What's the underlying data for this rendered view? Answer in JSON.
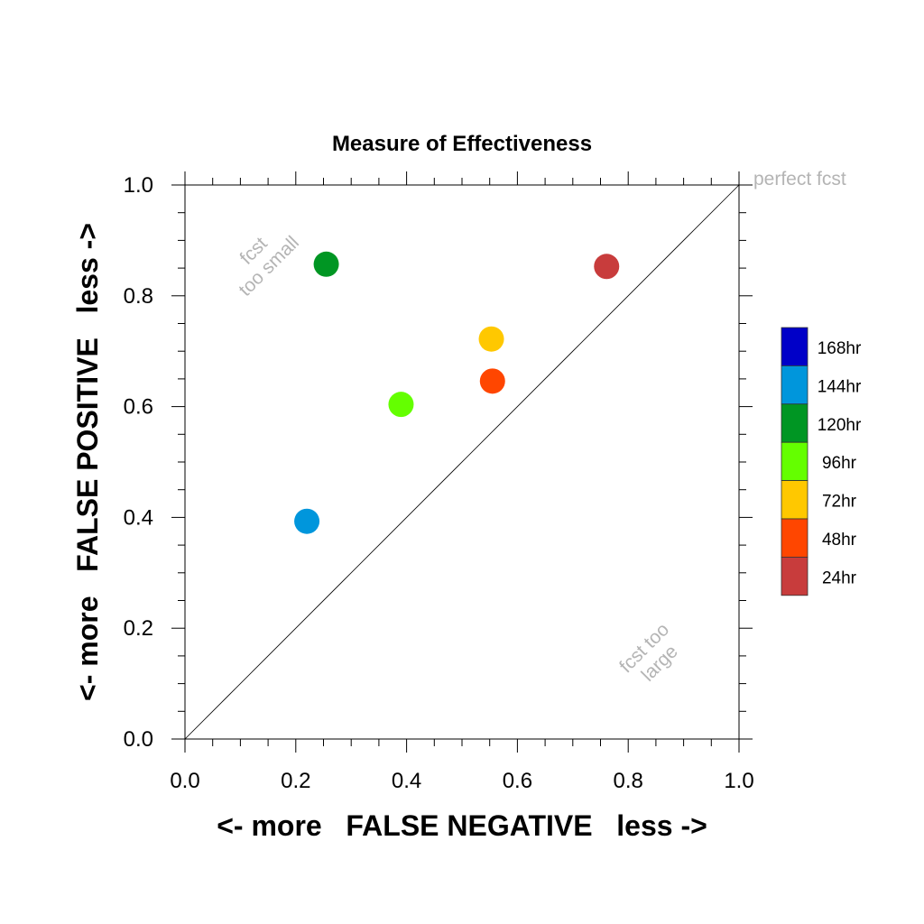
{
  "chart_data": {
    "type": "scatter",
    "title": "Measure of Effectiveness",
    "xlabel": "<- more   FALSE NEGATIVE   less ->",
    "ylabel": "<- more   FALSE POSITIVE   less ->",
    "xlim": [
      0,
      1
    ],
    "ylim": [
      0,
      1
    ],
    "grid": false,
    "legend_position": "right",
    "xticks": [
      "0.0",
      "0.2",
      "0.4",
      "0.6",
      "0.8",
      "1.0"
    ],
    "yticks": [
      "0.0",
      "0.2",
      "0.4",
      "0.6",
      "0.8",
      "1.0"
    ],
    "annotations": {
      "perfect": "perfect fcst",
      "small_line1": "fcst",
      "small_line2": "too small",
      "large_line1": "fcst too",
      "large_line2": "large"
    },
    "legend": [
      {
        "label": "168hr",
        "color": "#0000c8"
      },
      {
        "label": "144hr",
        "color": "#0096dc"
      },
      {
        "label": "120hr",
        "color": "#009623"
      },
      {
        "label": "96hr",
        "color": "#64ff00"
      },
      {
        "label": "72hr",
        "color": "#ffc800"
      },
      {
        "label": "48hr",
        "color": "#ff4600"
      },
      {
        "label": "24hr",
        "color": "#c83c3c"
      }
    ],
    "series": [
      {
        "name": "144hr",
        "x": 0.22,
        "y": 0.393,
        "color": "#0096dc"
      },
      {
        "name": "120hr",
        "x": 0.255,
        "y": 0.857,
        "color": "#009623"
      },
      {
        "name": "96hr",
        "x": 0.39,
        "y": 0.604,
        "color": "#64ff00"
      },
      {
        "name": "72hr",
        "x": 0.553,
        "y": 0.722,
        "color": "#ffc800"
      },
      {
        "name": "48hr",
        "x": 0.555,
        "y": 0.646,
        "color": "#ff4600"
      },
      {
        "name": "24hr",
        "x": 0.761,
        "y": 0.853,
        "color": "#c83c3c"
      }
    ]
  }
}
